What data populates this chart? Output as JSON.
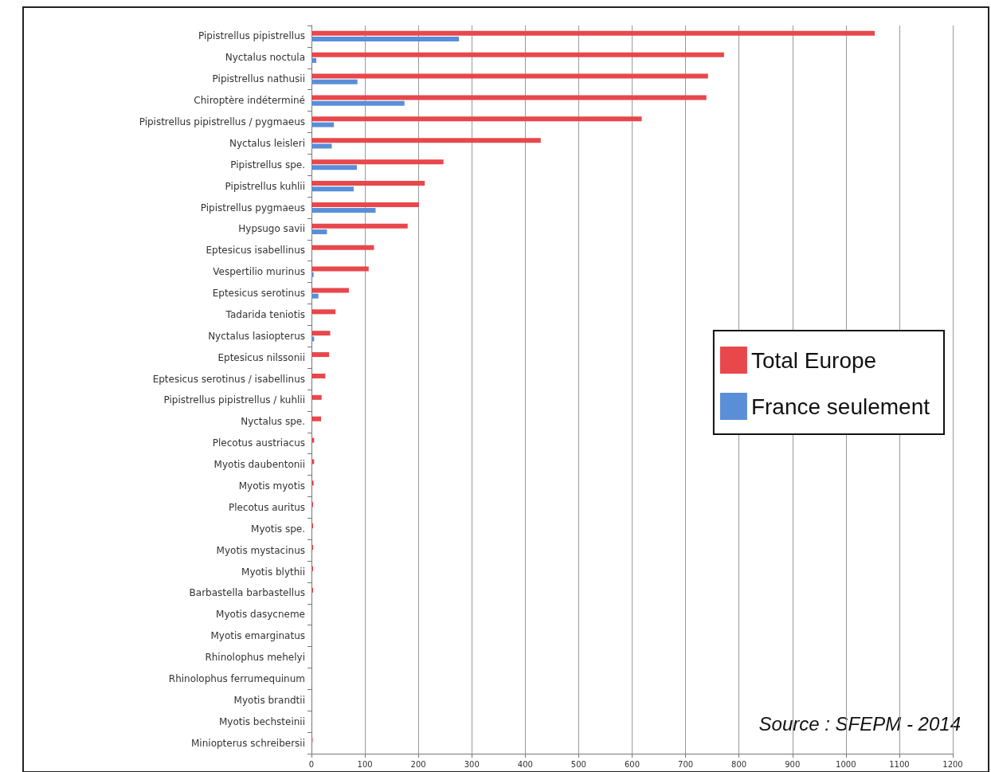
{
  "chart_data": {
    "type": "bar",
    "orientation": "horizontal",
    "categories": [
      "Pipistrellus pipistrellus",
      "Nyctalus noctula",
      "Pipistrellus nathusii",
      "Chiroptère indéterminé",
      "Pipistrellus pipistrellus / pygmaeus",
      "Nyctalus leisleri",
      "Pipistrellus spe.",
      "Pipistrellus kuhlii",
      "Pipistrellus pygmaeus",
      "Hypsugo savii",
      "Eptesicus isabellinus",
      "Vespertilio murinus",
      "Eptesicus serotinus",
      "Tadarida teniotis",
      "Nyctalus lasiopterus",
      "Eptesicus nilssonii",
      "Eptesicus serotinus / isabellinus",
      "Pipistrellus pipistrellus / kuhlii",
      "Nyctalus spe.",
      "Plecotus austriacus",
      "Myotis daubentonii",
      "Myotis myotis",
      "Plecotus auritus",
      "Myotis spe.",
      "Myotis mystacinus",
      "Myotis blythii",
      "Barbastella barbastellus",
      "Myotis dasycneme",
      "Myotis emarginatus",
      "Rhinolophus mehelyi",
      "Rhinolophus ferrumequinum",
      "Myotis brandtii",
      "Myotis bechsteinii",
      "Miniopterus schreibersii"
    ],
    "series": [
      {
        "name": "Total Europe",
        "color": "#e8474c",
        "values": [
          1054,
          772,
          742,
          739,
          618,
          429,
          247,
          212,
          201,
          180,
          117,
          107,
          70,
          45,
          35,
          33,
          26,
          19,
          18,
          5,
          5,
          4,
          3,
          3,
          3,
          3,
          3,
          1,
          1,
          1,
          1,
          1,
          1,
          2
        ]
      },
      {
        "name": "France seulement",
        "color": "#5a8fd8",
        "values": [
          276,
          9,
          86,
          174,
          42,
          38,
          85,
          79,
          120,
          29,
          0,
          4,
          13,
          0,
          5,
          0,
          0,
          0,
          0,
          0,
          0,
          0,
          0,
          0,
          0,
          0,
          0,
          0,
          0,
          0,
          0,
          0,
          0,
          0
        ]
      }
    ],
    "xlim": [
      0,
      1200
    ],
    "xticks": [
      0,
      100,
      200,
      300,
      400,
      500,
      600,
      700,
      800,
      900,
      1000,
      1100,
      1200
    ],
    "grid": "x",
    "legend": "right",
    "annotations": [
      "Source : SFEPM - 2014"
    ]
  }
}
